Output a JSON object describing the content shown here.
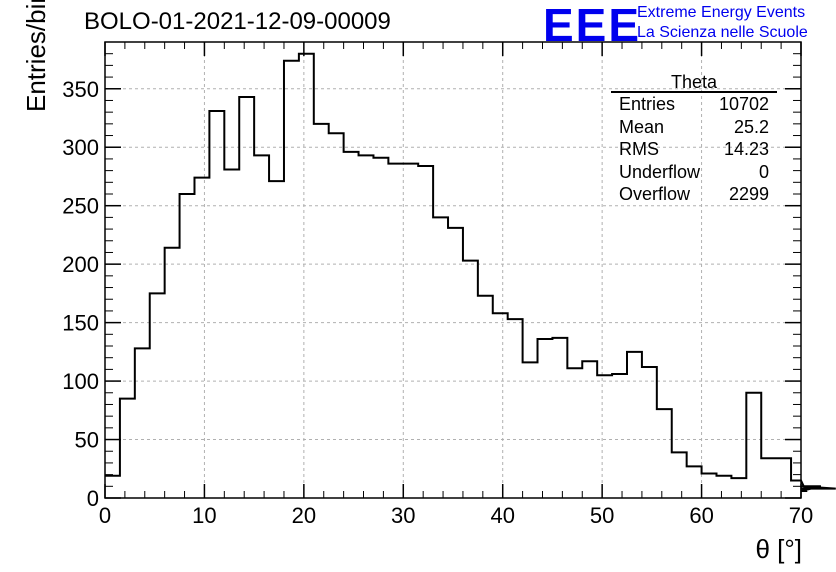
{
  "title": "BOLO-01-2021-12-09-00009",
  "logo": {
    "mark": "EEE",
    "line1": "Extreme Energy Events",
    "line2": "La Scienza nelle Scuole",
    "color": "#0000ee"
  },
  "stats_box": {
    "title": "Theta",
    "rows": [
      {
        "label": "Entries",
        "value": "10702"
      },
      {
        "label": "Mean",
        "value": "25.2"
      },
      {
        "label": "RMS",
        "value": "14.23"
      },
      {
        "label": "Underflow",
        "value": "0"
      },
      {
        "label": "Overflow",
        "value": "2299"
      }
    ]
  },
  "chart_data": {
    "type": "bar",
    "style": "step-histogram",
    "xlabel": "θ [°]",
    "ylabel": "Entries/bin",
    "xlim": [
      0,
      70
    ],
    "ylim": [
      0,
      390
    ],
    "x_ticks": [
      0,
      10,
      20,
      30,
      40,
      50,
      60,
      70
    ],
    "y_ticks": [
      0,
      50,
      100,
      150,
      200,
      250,
      300,
      350
    ],
    "grid": true,
    "bin_width": 1.5,
    "bin_edges_start": 0,
    "values": [
      19,
      85,
      128,
      175,
      214,
      260,
      274,
      331,
      281,
      343,
      293,
      271,
      374,
      380,
      320,
      312,
      296,
      293,
      291,
      286,
      286,
      284,
      240,
      231,
      203,
      173,
      158,
      153,
      116,
      136,
      137,
      111,
      117,
      105,
      106,
      125,
      112,
      76,
      39,
      27,
      21,
      19,
      17,
      90,
      34,
      34,
      15,
      6,
      10,
      8
    ],
    "line_color": "#000000"
  }
}
